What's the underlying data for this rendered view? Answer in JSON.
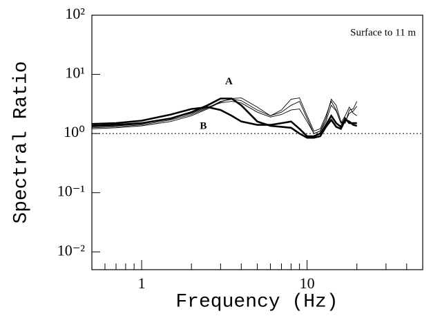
{
  "chart_data": {
    "type": "line",
    "xlabel": "Frequency (Hz)",
    "ylabel": "Spectral Ratio",
    "annotation": "Surface to 11 m",
    "x": [
      0.5,
      0.7,
      1,
      1.5,
      2,
      2.5,
      3,
      3.5,
      4,
      5,
      6,
      7,
      8,
      9,
      10,
      11,
      12,
      13,
      14,
      15,
      16,
      17,
      18,
      19,
      20
    ],
    "series": [
      {
        "color": "#000000",
        "values": [
          1.2,
          1.25,
          1.35,
          1.6,
          2.0,
          2.6,
          3.4,
          3.9,
          4.0,
          2.8,
          2.0,
          2.5,
          3.8,
          4.0,
          2.0,
          1.1,
          1.2,
          2.0,
          3.5,
          2.5,
          1.5,
          2.0,
          2.8,
          2.2,
          2.0
        ]
      },
      {
        "color": "#000000",
        "values": [
          1.25,
          1.3,
          1.4,
          1.7,
          2.1,
          2.7,
          3.5,
          3.8,
          3.6,
          2.5,
          2.0,
          2.3,
          3.0,
          3.5,
          1.8,
          1.0,
          1.1,
          1.8,
          3.8,
          3.0,
          1.6,
          1.5,
          2.5,
          2.6,
          3.5
        ]
      },
      {
        "color": "#000000",
        "values": [
          1.3,
          1.35,
          1.45,
          1.8,
          2.2,
          2.8,
          3.3,
          3.5,
          3.3,
          2.3,
          1.9,
          2.1,
          2.5,
          2.6,
          1.6,
          1.0,
          1.1,
          1.6,
          3.0,
          2.4,
          1.5,
          1.6,
          2.2,
          2.4,
          2.9
        ]
      },
      {
        "name": "A",
        "color": "#000000",
        "bold": true,
        "values": [
          1.35,
          1.4,
          1.5,
          1.8,
          2.3,
          3.0,
          3.9,
          3.9,
          3.0,
          1.6,
          1.35,
          1.3,
          1.25,
          1.0,
          0.85,
          0.85,
          0.9,
          1.3,
          1.7,
          1.3,
          1.2,
          1.7,
          1.6,
          1.4,
          1.35
        ]
      },
      {
        "name": "B",
        "color": "#000000",
        "bold": true,
        "values": [
          1.45,
          1.5,
          1.65,
          2.1,
          2.6,
          2.8,
          2.5,
          2.0,
          1.6,
          1.4,
          1.4,
          1.5,
          1.6,
          1.2,
          0.9,
          0.9,
          1.0,
          1.4,
          2.0,
          1.5,
          1.3,
          1.8,
          1.5,
          1.5,
          1.5
        ]
      }
    ],
    "reference_line": 1,
    "xscale": "log",
    "yscale": "log",
    "xlim": [
      0.5,
      50
    ],
    "ylim": [
      0.005,
      100
    ],
    "xticks": [
      1,
      10
    ],
    "x_minor_ticks": [
      0.6,
      0.7,
      0.8,
      0.9,
      2,
      3,
      4,
      5,
      6,
      7,
      8,
      9,
      20,
      30,
      40
    ],
    "yticks": [
      {
        "value": 100,
        "label": "10²"
      },
      {
        "value": 10,
        "label": "10¹"
      },
      {
        "value": 1,
        "label": "10⁰"
      },
      {
        "value": 0.1,
        "label": "10⁻¹"
      },
      {
        "value": 0.01,
        "label": "10⁻²"
      }
    ]
  }
}
